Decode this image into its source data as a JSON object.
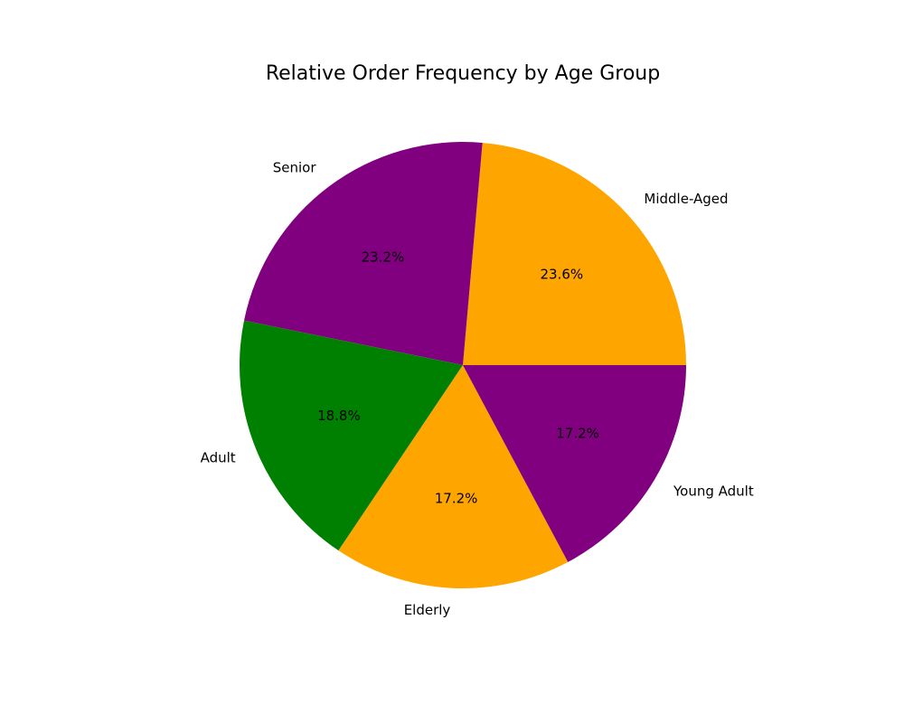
{
  "chart_data": {
    "type": "pie",
    "title": "Relative Order Frequency by Age Group",
    "slices": [
      {
        "label": "Middle-Aged",
        "value": 23.6,
        "pct_label": "23.6%",
        "color": "#ffa500"
      },
      {
        "label": "Senior",
        "value": 23.2,
        "pct_label": "23.2%",
        "color": "#800080"
      },
      {
        "label": "Adult",
        "value": 18.8,
        "pct_label": "18.8%",
        "color": "#008000"
      },
      {
        "label": "Elderly",
        "value": 17.2,
        "pct_label": "17.2%",
        "color": "#ffa500"
      },
      {
        "label": "Young Adult",
        "value": 17.2,
        "pct_label": "17.2%",
        "color": "#800080"
      }
    ],
    "start_angle_deg": 0,
    "direction": "counterclockwise",
    "legend": "none"
  }
}
